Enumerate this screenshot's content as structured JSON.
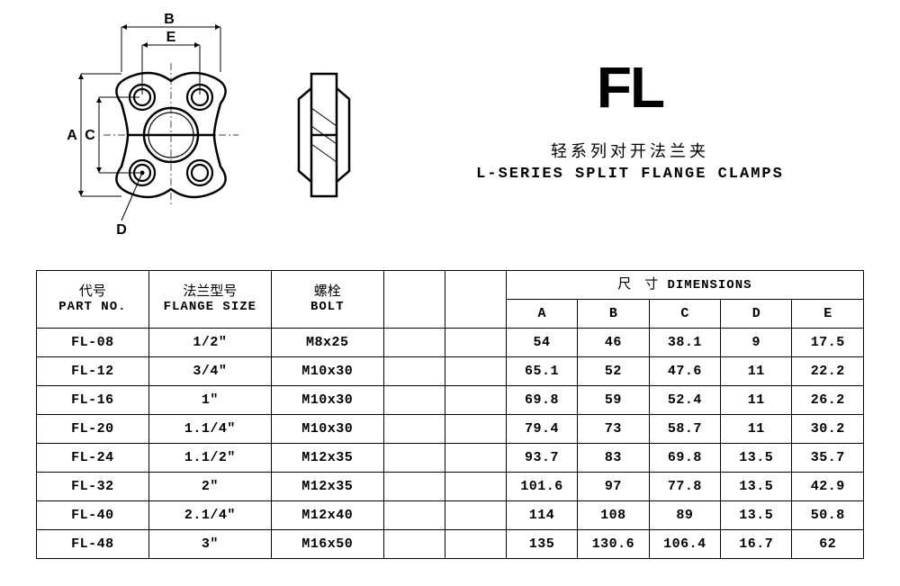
{
  "heading": {
    "code": "FL",
    "subtitle_cn": "轻系列对开法兰夹",
    "subtitle_en": "L-SERIES SPLIT FLANGE CLAMPS"
  },
  "diagram": {
    "labels": {
      "A": "A",
      "B": "B",
      "C": "C",
      "D": "D",
      "E": "E"
    },
    "stroke": "#000000",
    "stroke_width_main": 2.5,
    "stroke_width_thin": 1.2
  },
  "table": {
    "headers": {
      "part_no_cn": "代号",
      "part_no_en": "PART NO.",
      "flange_cn": "法兰型号",
      "flange_en": "FLANGE SIZE",
      "bolt_cn": "螺栓",
      "bolt_en": "BOLT",
      "dims_cn": "尺　寸",
      "dims_en": "DIMENSIONS",
      "A": "A",
      "B": "B",
      "C": "C",
      "D": "D",
      "E": "E"
    },
    "col_widths": {
      "part_no": 110,
      "flange": 120,
      "bolt": 110,
      "blank1": 60,
      "blank2": 60,
      "A": 70,
      "B": 70,
      "C": 70,
      "D": 70,
      "E": 70
    },
    "rows": [
      {
        "part_no": "FL-08",
        "flange": "1/2\"",
        "bolt": "M8x25",
        "A": "54",
        "B": "46",
        "C": "38.1",
        "D": "9",
        "E": "17.5"
      },
      {
        "part_no": "FL-12",
        "flange": "3/4\"",
        "bolt": "M10x30",
        "A": "65.1",
        "B": "52",
        "C": "47.6",
        "D": "11",
        "E": "22.2"
      },
      {
        "part_no": "FL-16",
        "flange": "1\"",
        "bolt": "M10x30",
        "A": "69.8",
        "B": "59",
        "C": "52.4",
        "D": "11",
        "E": "26.2"
      },
      {
        "part_no": "FL-20",
        "flange": "1.1/4\"",
        "bolt": "M10x30",
        "A": "79.4",
        "B": "73",
        "C": "58.7",
        "D": "11",
        "E": "30.2"
      },
      {
        "part_no": "FL-24",
        "flange": "1.1/2\"",
        "bolt": "M12x35",
        "A": "93.7",
        "B": "83",
        "C": "69.8",
        "D": "13.5",
        "E": "35.7"
      },
      {
        "part_no": "FL-32",
        "flange": "2\"",
        "bolt": "M12x35",
        "A": "101.6",
        "B": "97",
        "C": "77.8",
        "D": "13.5",
        "E": "42.9"
      },
      {
        "part_no": "FL-40",
        "flange": "2.1/4\"",
        "bolt": "M12x40",
        "A": "114",
        "B": "108",
        "C": "89",
        "D": "13.5",
        "E": "50.8"
      },
      {
        "part_no": "FL-48",
        "flange": "3\"",
        "bolt": "M16x50",
        "A": "135",
        "B": "130.6",
        "C": "106.4",
        "D": "16.7",
        "E": "62"
      }
    ]
  },
  "colors": {
    "border": "#000000",
    "bg": "#ffffff",
    "text": "#000000"
  }
}
